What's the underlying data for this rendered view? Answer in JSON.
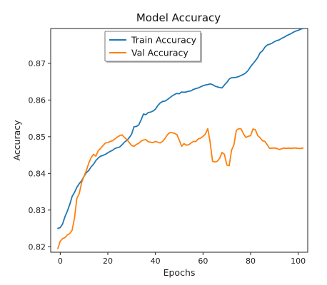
{
  "chart_data": {
    "type": "line",
    "title": "Model Accuracy",
    "xlabel": "Epochs",
    "ylabel": "Accuracy",
    "xlim": [
      -4,
      104
    ],
    "ylim": [
      0.8185,
      0.8795
    ],
    "xticks": [
      0,
      20,
      40,
      60,
      80,
      100
    ],
    "yticks": [
      0.82,
      0.83,
      0.84,
      0.85,
      0.86,
      0.87
    ],
    "grid": false,
    "legend_position": "top-center",
    "series": [
      {
        "name": "Train Accuracy",
        "color": "#1f77b4",
        "points": [
          [
            -1,
            0.825
          ],
          [
            0,
            0.8252
          ],
          [
            1,
            0.8262
          ],
          [
            2,
            0.8282
          ],
          [
            3,
            0.8297
          ],
          [
            4,
            0.8315
          ],
          [
            5,
            0.8337
          ],
          [
            6,
            0.8348
          ],
          [
            7,
            0.8362
          ],
          [
            8,
            0.8372
          ],
          [
            9,
            0.838
          ],
          [
            10,
            0.8392
          ],
          [
            11,
            0.8402
          ],
          [
            12,
            0.8408
          ],
          [
            13,
            0.8418
          ],
          [
            14,
            0.8425
          ],
          [
            15,
            0.8435
          ],
          [
            16,
            0.8442
          ],
          [
            17,
            0.8447
          ],
          [
            18,
            0.8449
          ],
          [
            19,
            0.8452
          ],
          [
            20,
            0.8456
          ],
          [
            21,
            0.846
          ],
          [
            22,
            0.8463
          ],
          [
            23,
            0.8468
          ],
          [
            24,
            0.847
          ],
          [
            25,
            0.8472
          ],
          [
            26,
            0.8478
          ],
          [
            27,
            0.8485
          ],
          [
            28,
            0.849
          ],
          [
            29,
            0.8497
          ],
          [
            30,
            0.8507
          ],
          [
            31,
            0.8527
          ],
          [
            32,
            0.8528
          ],
          [
            33,
            0.8532
          ],
          [
            34,
            0.8546
          ],
          [
            35,
            0.8562
          ],
          [
            36,
            0.856
          ],
          [
            37,
            0.8566
          ],
          [
            38,
            0.8567
          ],
          [
            39,
            0.857
          ],
          [
            40,
            0.8575
          ],
          [
            41,
            0.8585
          ],
          [
            42,
            0.8592
          ],
          [
            43,
            0.8596
          ],
          [
            44,
            0.8597
          ],
          [
            45,
            0.8601
          ],
          [
            46,
            0.8606
          ],
          [
            47,
            0.8611
          ],
          [
            48,
            0.8615
          ],
          [
            49,
            0.8618
          ],
          [
            50,
            0.8617
          ],
          [
            51,
            0.8622
          ],
          [
            52,
            0.8621
          ],
          [
            53,
            0.8622
          ],
          [
            54,
            0.8624
          ],
          [
            55,
            0.8625
          ],
          [
            56,
            0.8629
          ],
          [
            57,
            0.8631
          ],
          [
            58,
            0.8633
          ],
          [
            59,
            0.8636
          ],
          [
            60,
            0.8639
          ],
          [
            61,
            0.8641
          ],
          [
            62,
            0.8642
          ],
          [
            63,
            0.8644
          ],
          [
            64,
            0.8642
          ],
          [
            65,
            0.8638
          ],
          [
            66,
            0.8636
          ],
          [
            67,
            0.8634
          ],
          [
            68,
            0.8633
          ],
          [
            69,
            0.8641
          ],
          [
            70,
            0.8648
          ],
          [
            71,
            0.8657
          ],
          [
            72,
            0.8661
          ],
          [
            73,
            0.8661
          ],
          [
            74,
            0.8662
          ],
          [
            75,
            0.8664
          ],
          [
            76,
            0.8667
          ],
          [
            77,
            0.867
          ],
          [
            78,
            0.8674
          ],
          [
            79,
            0.8681
          ],
          [
            80,
            0.8691
          ],
          [
            81,
            0.8699
          ],
          [
            82,
            0.8707
          ],
          [
            83,
            0.8716
          ],
          [
            84,
            0.8729
          ],
          [
            85,
            0.8734
          ],
          [
            86,
            0.8744
          ],
          [
            87,
            0.875
          ],
          [
            88,
            0.8752
          ],
          [
            89,
            0.8755
          ],
          [
            90,
            0.8759
          ],
          [
            91,
            0.8762
          ],
          [
            92,
            0.8764
          ],
          [
            93,
            0.8768
          ],
          [
            94,
            0.8771
          ],
          [
            95,
            0.8775
          ],
          [
            96,
            0.8778
          ],
          [
            97,
            0.8781
          ],
          [
            98,
            0.8785
          ],
          [
            99,
            0.8788
          ],
          [
            100,
            0.879
          ],
          [
            101,
            0.8793
          ],
          [
            102,
            0.8795
          ]
        ]
      },
      {
        "name": "Val Accuracy",
        "color": "#ff7f0e",
        "points": [
          [
            -1,
            0.8195
          ],
          [
            0,
            0.8215
          ],
          [
            1,
            0.8222
          ],
          [
            2,
            0.8225
          ],
          [
            3,
            0.8232
          ],
          [
            4,
            0.8236
          ],
          [
            5,
            0.8245
          ],
          [
            6,
            0.8278
          ],
          [
            7,
            0.8332
          ],
          [
            8,
            0.8345
          ],
          [
            9,
            0.8375
          ],
          [
            10,
            0.8392
          ],
          [
            11,
            0.8408
          ],
          [
            12,
            0.8428
          ],
          [
            13,
            0.8443
          ],
          [
            14,
            0.8452
          ],
          [
            15,
            0.8447
          ],
          [
            16,
            0.8462
          ],
          [
            17,
            0.8468
          ],
          [
            18,
            0.8476
          ],
          [
            19,
            0.8483
          ],
          [
            20,
            0.8484
          ],
          [
            21,
            0.8487
          ],
          [
            22,
            0.8489
          ],
          [
            23,
            0.8494
          ],
          [
            24,
            0.8499
          ],
          [
            25,
            0.8503
          ],
          [
            26,
            0.8505
          ],
          [
            27,
            0.8498
          ],
          [
            28,
            0.8492
          ],
          [
            29,
            0.8484
          ],
          [
            30,
            0.8476
          ],
          [
            31,
            0.8474
          ],
          [
            32,
            0.8479
          ],
          [
            33,
            0.8482
          ],
          [
            34,
            0.8488
          ],
          [
            35,
            0.8491
          ],
          [
            36,
            0.8492
          ],
          [
            37,
            0.8486
          ],
          [
            38,
            0.8485
          ],
          [
            39,
            0.8484
          ],
          [
            40,
            0.8487
          ],
          [
            41,
            0.8485
          ],
          [
            42,
            0.8483
          ],
          [
            43,
            0.8487
          ],
          [
            44,
            0.8495
          ],
          [
            45,
            0.8505
          ],
          [
            46,
            0.8511
          ],
          [
            47,
            0.8511
          ],
          [
            48,
            0.8509
          ],
          [
            49,
            0.8506
          ],
          [
            50,
            0.8491
          ],
          [
            51,
            0.8474
          ],
          [
            52,
            0.8481
          ],
          [
            53,
            0.8477
          ],
          [
            54,
            0.8478
          ],
          [
            55,
            0.8483
          ],
          [
            56,
            0.8487
          ],
          [
            57,
            0.8487
          ],
          [
            58,
            0.8494
          ],
          [
            59,
            0.8496
          ],
          [
            60,
            0.8501
          ],
          [
            61,
            0.8507
          ],
          [
            62,
            0.8522
          ],
          [
            63,
            0.8485
          ],
          [
            64,
            0.8433
          ],
          [
            65,
            0.8431
          ],
          [
            66,
            0.8433
          ],
          [
            67,
            0.8441
          ],
          [
            68,
            0.8457
          ],
          [
            69,
            0.8452
          ],
          [
            70,
            0.8423
          ],
          [
            71,
            0.8421
          ],
          [
            72,
            0.8463
          ],
          [
            73,
            0.8478
          ],
          [
            74,
            0.8517
          ],
          [
            75,
            0.8522
          ],
          [
            76,
            0.8521
          ],
          [
            77,
            0.8508
          ],
          [
            78,
            0.8498
          ],
          [
            79,
            0.8501
          ],
          [
            80,
            0.8503
          ],
          [
            81,
            0.8521
          ],
          [
            82,
            0.8519
          ],
          [
            83,
            0.8503
          ],
          [
            84,
            0.8497
          ],
          [
            85,
            0.8489
          ],
          [
            86,
            0.8487
          ],
          [
            87,
            0.8478
          ],
          [
            88,
            0.8468
          ],
          [
            89,
            0.8469
          ],
          [
            90,
            0.8469
          ],
          [
            91,
            0.8468
          ],
          [
            92,
            0.8465
          ],
          [
            93,
            0.8467
          ],
          [
            94,
            0.8469
          ],
          [
            95,
            0.8468
          ],
          [
            96,
            0.8469
          ],
          [
            97,
            0.8468
          ],
          [
            98,
            0.8469
          ],
          [
            99,
            0.8469
          ],
          [
            100,
            0.8468
          ],
          [
            101,
            0.8468
          ],
          [
            102,
            0.8469
          ]
        ]
      }
    ]
  }
}
